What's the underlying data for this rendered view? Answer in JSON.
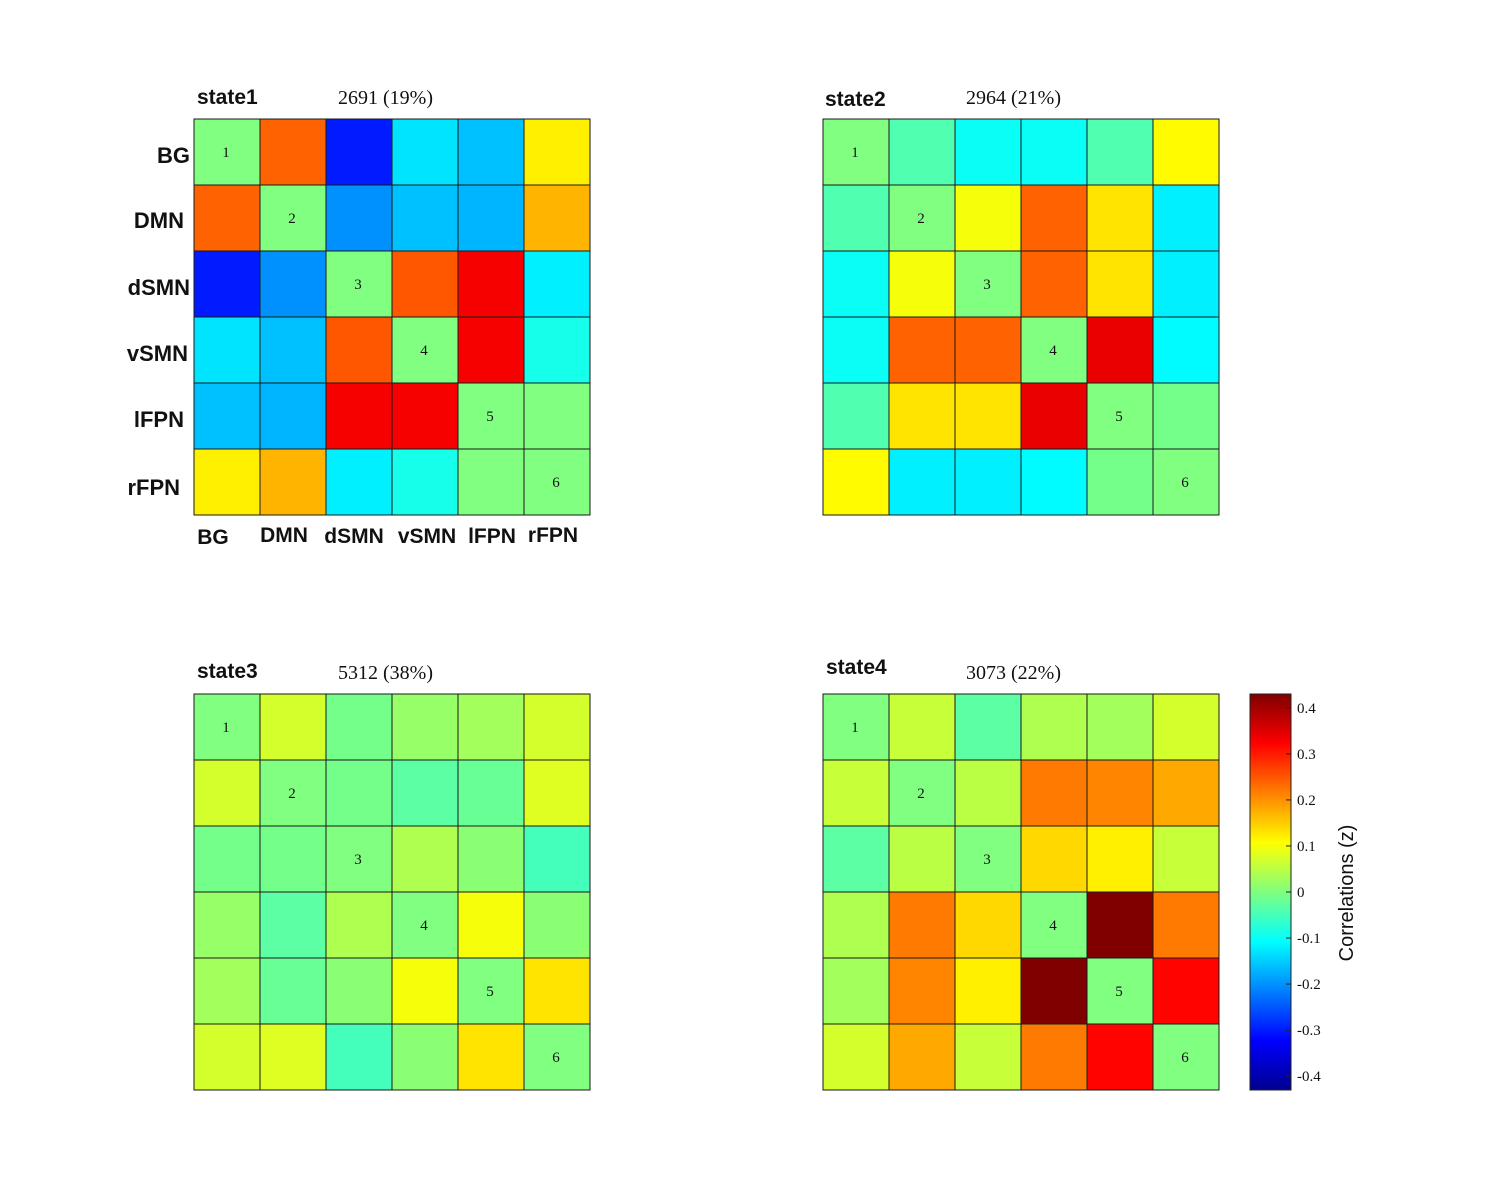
{
  "chart_data": {
    "type": "heatmap",
    "networks": [
      "BG",
      "DMN",
      "dSMN",
      "vSMN",
      "lFPN",
      "rFPN"
    ],
    "colorbar": {
      "label": "Correlations (z)",
      "range": [
        -0.43,
        0.43
      ],
      "ticks": [
        0.4,
        0.3,
        0.2,
        0.1,
        0,
        -0.1,
        -0.2,
        -0.3,
        -0.4
      ],
      "tick_labels": [
        "0.4",
        "0.3",
        "0.2",
        "0.1",
        "0",
        "-0.1",
        "-0.2",
        "-0.3",
        "-0.4"
      ]
    },
    "states": [
      {
        "title": "state1",
        "count_label": "2691 (19%)",
        "diagonal_labels": [
          "1",
          "2",
          "3",
          "4",
          "5",
          "6"
        ],
        "matrix": [
          [
            0,
            0.24,
            -0.3,
            -0.13,
            -0.16,
            0.12
          ],
          [
            0.24,
            0,
            -0.2,
            -0.16,
            -0.17,
            0.17
          ],
          [
            -0.3,
            -0.2,
            0,
            0.25,
            0.33,
            -0.12
          ],
          [
            -0.13,
            -0.16,
            0.25,
            0,
            0.33,
            -0.09
          ],
          [
            -0.16,
            -0.17,
            0.33,
            0.33,
            0,
            0
          ],
          [
            0.12,
            0.17,
            -0.12,
            -0.09,
            0,
            0
          ]
        ]
      },
      {
        "title": "state2",
        "count_label": "2964 (21%)",
        "diagonal_labels": [
          "1",
          "2",
          "3",
          "4",
          "5",
          "6"
        ],
        "matrix": [
          [
            0,
            -0.04,
            -0.1,
            -0.1,
            -0.04,
            0.11
          ],
          [
            -0.04,
            0,
            0.1,
            0.24,
            0.13,
            -0.12
          ],
          [
            -0.1,
            0.1,
            0,
            0.24,
            0.13,
            -0.12
          ],
          [
            -0.1,
            0.24,
            0.24,
            0,
            0.34,
            -0.11
          ],
          [
            -0.04,
            0.13,
            0.13,
            0.34,
            0,
            -0.01
          ],
          [
            0.11,
            -0.12,
            -0.12,
            -0.11,
            -0.01,
            0
          ]
        ]
      },
      {
        "title": "state3",
        "count_label": "5312 (38%)",
        "diagonal_labels": [
          "1",
          "2",
          "3",
          "4",
          "5",
          "6"
        ],
        "matrix": [
          [
            0,
            0.07,
            -0.01,
            0.02,
            0.03,
            0.07
          ],
          [
            0.07,
            0,
            -0.01,
            -0.03,
            -0.02,
            0.08
          ],
          [
            -0.01,
            -0.01,
            0,
            0.04,
            0.01,
            -0.05
          ],
          [
            0.02,
            -0.03,
            0.04,
            0,
            0.1,
            0.01
          ],
          [
            0.03,
            -0.02,
            0.01,
            0.1,
            0,
            0.13
          ],
          [
            0.07,
            0.08,
            -0.05,
            0.01,
            0.13,
            0
          ]
        ]
      },
      {
        "title": "state4",
        "count_label": "3073 (22%)",
        "diagonal_labels": [
          "1",
          "2",
          "3",
          "4",
          "5",
          "6"
        ],
        "matrix": [
          [
            0,
            0.06,
            -0.03,
            0.04,
            0.03,
            0.07
          ],
          [
            0.06,
            0,
            0.05,
            0.22,
            0.21,
            0.18
          ],
          [
            -0.03,
            0.05,
            0,
            0.14,
            0.12,
            0.06
          ],
          [
            0.04,
            0.22,
            0.14,
            0,
            0.43,
            0.22
          ],
          [
            0.03,
            0.21,
            0.12,
            0.43,
            0,
            0.32
          ],
          [
            0.07,
            0.18,
            0.06,
            0.22,
            0.32,
            0
          ]
        ]
      }
    ]
  }
}
